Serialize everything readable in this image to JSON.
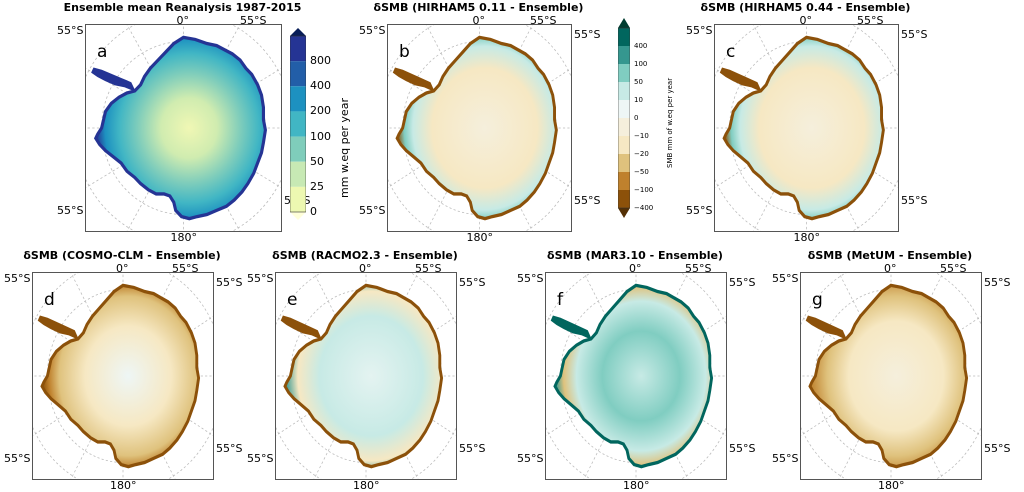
{
  "panels": [
    {
      "id": "a",
      "title": "Ensemble mean Reanalysis 1987-2015",
      "letter": "a",
      "type": "mean"
    },
    {
      "id": "b",
      "title": "δSMB (HIRHAM5 0.11 - Ensemble)",
      "letter": "b",
      "type": "diff1"
    },
    {
      "id": "c",
      "title": "δSMB (HIRHAM5 0.44 - Ensemble)",
      "letter": "c",
      "type": "diff2"
    },
    {
      "id": "d",
      "title": "δSMB (COSMO-CLM - Ensemble)",
      "letter": "d",
      "type": "diff3"
    },
    {
      "id": "e",
      "title": "δSMB (RACMO2.3 - Ensemble)",
      "letter": "e",
      "type": "diff4"
    },
    {
      "id": "f",
      "title": "δSMB (MAR3.10 - Ensemble)",
      "letter": "f",
      "type": "diff5"
    },
    {
      "id": "g",
      "title": "δSMB (MetUM - Ensemble)",
      "letter": "g",
      "type": "diff6"
    }
  ],
  "grid_labels": {
    "lat": "55°S",
    "lon_top": "0°",
    "lon_bottom": "180°"
  },
  "colorbar_mean": {
    "title": "mm w.eq per year",
    "ticks": [
      "800",
      "400",
      "200",
      "100",
      "50",
      "25",
      "0"
    ],
    "colors": [
      "#081d58",
      "#253494",
      "#225ea8",
      "#1d91c0",
      "#41b6c4",
      "#7fcdbb",
      "#c7e9b4",
      "#edf8b1",
      "#ffffd9"
    ]
  },
  "colorbar_diff": {
    "title": "SMB mm of w.eq per year",
    "ticks": [
      "400",
      "100",
      "50",
      "10",
      "0",
      "−10",
      "−20",
      "−50",
      "−100",
      "−400"
    ],
    "colors": [
      "#003c30",
      "#01665e",
      "#35978f",
      "#80cdc1",
      "#c7eae5",
      "#eef6f5",
      "#f5efdc",
      "#f6e8c3",
      "#dfc27d",
      "#bf812d",
      "#8c510a",
      "#543005"
    ]
  }
}
